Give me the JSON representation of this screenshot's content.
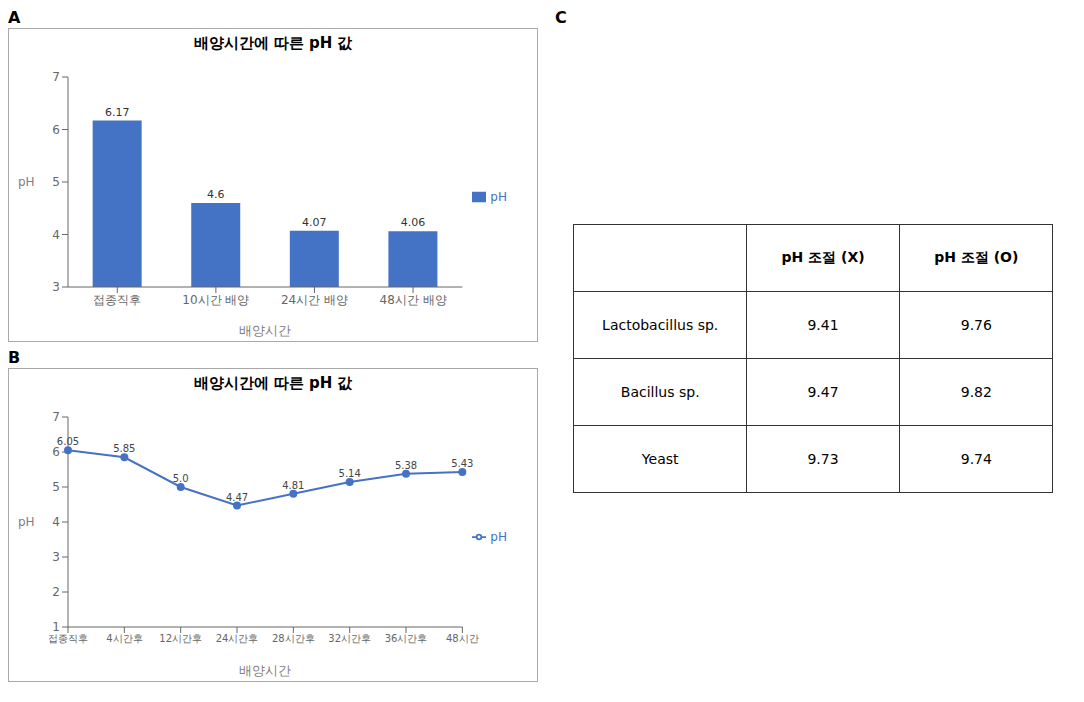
{
  "chart_data": [
    {
      "type": "bar",
      "panel_label": "A",
      "title": "배양시간에 따른 pH 값",
      "xlabel": "배양시간",
      "ylabel": "pH",
      "categories": [
        "접종직후",
        "10시간 배양",
        "24시간 배양",
        "48시간 배양"
      ],
      "series": [
        {
          "name": "pH",
          "color": "#4472C4",
          "values": [
            6.17,
            4.6,
            4.07,
            4.06
          ]
        }
      ],
      "ylim": [
        3,
        7
      ],
      "yticks": [
        3,
        4,
        5,
        6,
        7
      ],
      "grid": false,
      "legend": "right",
      "data_labels": true
    },
    {
      "type": "line",
      "panel_label": "B",
      "title": "배양시간에 따른 pH 값",
      "xlabel": "배양시간",
      "ylabel": "pH",
      "categories": [
        "접종직후",
        "4시간후",
        "12시간후",
        "24시간후",
        "28시간후",
        "32시간후",
        "36시간후",
        "48시간"
      ],
      "series": [
        {
          "name": "pH",
          "color": "#4472C4",
          "marker": "circle",
          "values": [
            6.05,
            5.85,
            5.0,
            4.47,
            4.81,
            5.14,
            5.38,
            5.43
          ],
          "value_labels": [
            "6.05",
            "5.85",
            "5.0",
            "4.47",
            "4.81",
            "5.14",
            "5.38",
            "5.43"
          ]
        }
      ],
      "ylim": [
        1,
        7
      ],
      "yticks": [
        1,
        2,
        3,
        4,
        5,
        6,
        7
      ],
      "grid": false,
      "legend": "right",
      "data_labels": true
    },
    {
      "type": "table",
      "panel_label": "C",
      "categories": [
        "Lactobacillus sp.",
        "Bacillus sp.",
        "Yeast"
      ],
      "series": [
        {
          "name": "pH 조절 (X)",
          "values": [
            9.41,
            9.47,
            9.73
          ]
        },
        {
          "name": "pH 조절 (O)",
          "values": [
            9.76,
            9.82,
            9.74
          ]
        }
      ]
    }
  ]
}
